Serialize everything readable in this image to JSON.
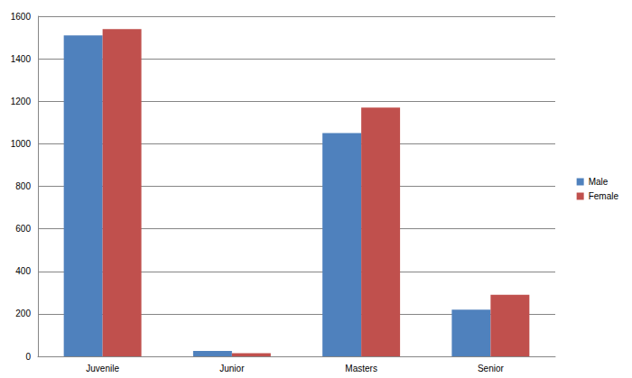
{
  "chart_data": {
    "type": "bar",
    "categories": [
      "Juvenile",
      "Junior",
      "Masters",
      "Senior"
    ],
    "series": [
      {
        "name": "Male",
        "color": "#4f81bd",
        "values": [
          1510,
          25,
          1050,
          220
        ]
      },
      {
        "name": "Female",
        "color": "#c0504d",
        "values": [
          1540,
          15,
          1170,
          290
        ]
      }
    ],
    "ylim": [
      0,
      1600
    ],
    "yticks": [
      0,
      200,
      400,
      600,
      800,
      1000,
      1200,
      1400,
      1600
    ],
    "grid": true,
    "legend": "right"
  }
}
